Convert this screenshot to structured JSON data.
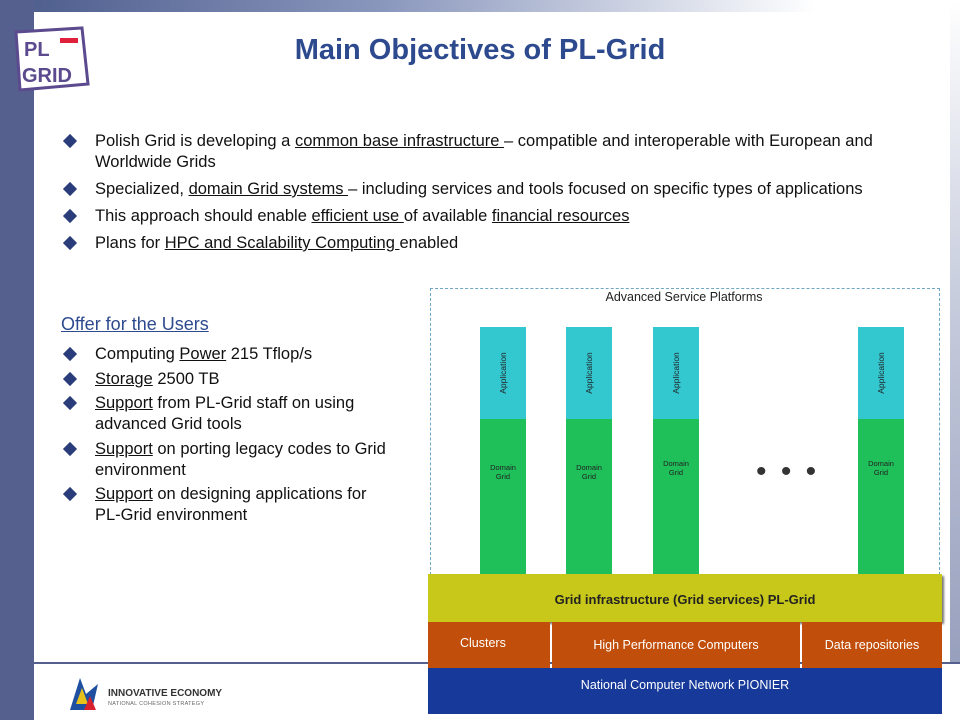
{
  "title": "Main Objectives of PL-Grid",
  "logo": {
    "line1": "PL",
    "line2": "GRID"
  },
  "bullets": [
    {
      "pre": "Polish Grid is developing a ",
      "u": "common base infrastructure ",
      "post": "– compatible and interoperable with European and Worldwide Grids"
    },
    {
      "pre": "Specialized, ",
      "u": "domain Grid systems ",
      "post": "– including services and tools focused on specific types of applications"
    },
    {
      "pre": "This approach should enable ",
      "u": "efficient use ",
      "mid": "of available ",
      "u2": "financial resources",
      "post": ""
    },
    {
      "pre": "Plans for ",
      "u": "HPC and Scalability Computing ",
      "post": "enabled"
    }
  ],
  "offer": {
    "title": "Offer for the Users",
    "items": [
      {
        "pre": "Computing ",
        "u": "Power",
        "post": " 215 Tflop/s"
      },
      {
        "pre": "",
        "u": "Storage",
        "post": " 2500 TB"
      },
      {
        "pre": "",
        "u": "Support",
        "post": " from PL-Grid staff on using advanced Grid tools"
      },
      {
        "pre": "",
        "u": "Support",
        "post": " on porting legacy codes to Grid environment"
      },
      {
        "pre": "",
        "u": "Support",
        "post": " on designing applications for PL-Grid environment"
      }
    ]
  },
  "diagram": {
    "platforms_label": "Advanced Service Platforms",
    "application_label": "Application",
    "domain_line1": "Domain",
    "domain_line2": "Grid",
    "ellipsis": "• • •",
    "grid_infrastructure": "Grid infrastructure (Grid services) PL-Grid",
    "clusters": "Clusters",
    "hpc": "High Performance Computers",
    "data_repos": "Data repositories",
    "network": "National Computer Network PIONIER",
    "colors": {
      "application": "#33c7d0",
      "domain": "#1fbf5a",
      "infra": "#c8c81a",
      "resources": "#c14e0a",
      "network": "#173a9a"
    }
  },
  "footer": {
    "brand": "INNOVATIVE ECONOMY",
    "sub": "NATIONAL COHESION STRATEGY"
  }
}
